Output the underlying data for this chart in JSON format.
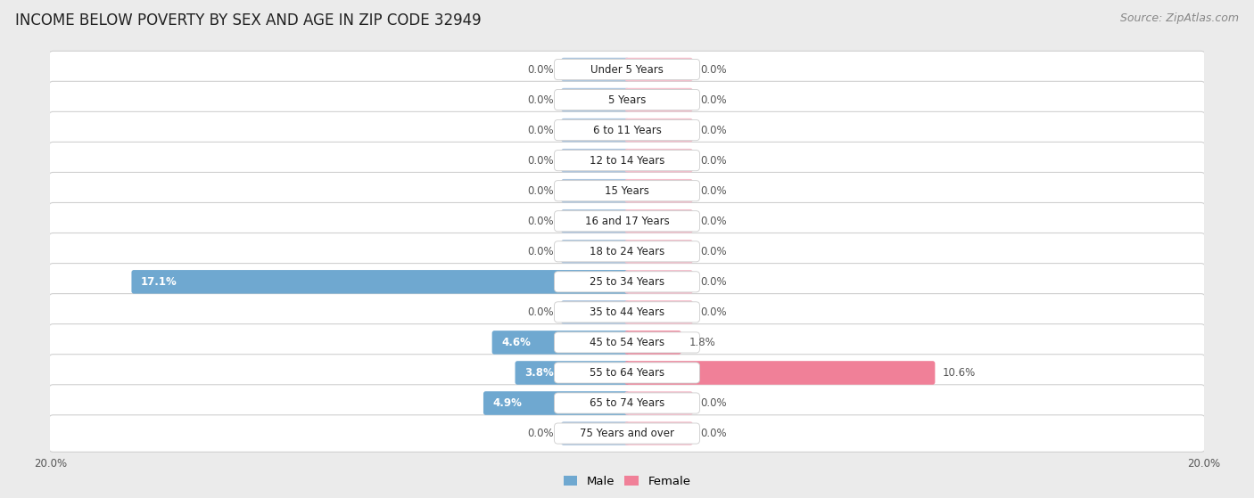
{
  "title": "INCOME BELOW POVERTY BY SEX AND AGE IN ZIP CODE 32949",
  "source": "Source: ZipAtlas.com",
  "categories": [
    "Under 5 Years",
    "5 Years",
    "6 to 11 Years",
    "12 to 14 Years",
    "15 Years",
    "16 and 17 Years",
    "18 to 24 Years",
    "25 to 34 Years",
    "35 to 44 Years",
    "45 to 54 Years",
    "55 to 64 Years",
    "65 to 74 Years",
    "75 Years and over"
  ],
  "male_values": [
    0.0,
    0.0,
    0.0,
    0.0,
    0.0,
    0.0,
    0.0,
    17.1,
    0.0,
    4.6,
    3.8,
    4.9,
    0.0
  ],
  "female_values": [
    0.0,
    0.0,
    0.0,
    0.0,
    0.0,
    0.0,
    0.0,
    0.0,
    0.0,
    1.8,
    10.6,
    0.0,
    0.0
  ],
  "male_color_zero": "#aec6df",
  "male_color_nonzero": "#6fa8d0",
  "female_color_zero": "#f5bfcc",
  "female_color_nonzero": "#f08098",
  "background_color": "#ebebeb",
  "row_bg_color": "#ffffff",
  "row_border_color": "#d0d0d0",
  "xlim": 20.0,
  "stub_size": 2.2,
  "title_fontsize": 12,
  "source_fontsize": 9,
  "value_fontsize": 8.5,
  "category_fontsize": 8.5,
  "legend_fontsize": 9.5,
  "bar_height": 0.62,
  "tick_label_fontsize": 8.5
}
